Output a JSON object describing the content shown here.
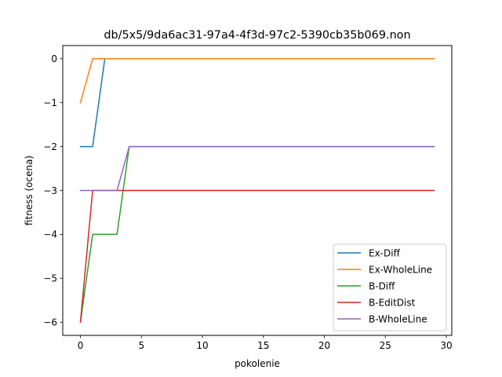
{
  "chart_data": {
    "type": "line",
    "title": "db/5x5/9da6ac31-97a4-4f3d-97c2-5390cb35b069.non",
    "xlabel": "pokolenie",
    "ylabel": "fitness (ocena)",
    "xlim": [
      -1.45,
      30.45
    ],
    "ylim": [
      -6.3,
      0.3
    ],
    "xticks": [
      0,
      5,
      10,
      15,
      20,
      25,
      30
    ],
    "yticks": [
      0,
      -1,
      -2,
      -3,
      -4,
      -5,
      -6
    ],
    "xtick_labels": [
      "0",
      "5",
      "10",
      "15",
      "20",
      "25",
      "30"
    ],
    "ytick_labels": [
      "0",
      "−1",
      "−2",
      "−3",
      "−4",
      "−5",
      "−6"
    ],
    "grid": false,
    "legend_position": "lower-right",
    "series": [
      {
        "name": "Ex-Diff",
        "color": "#1f77b4",
        "points": [
          [
            0,
            -2
          ],
          [
            1,
            -2
          ],
          [
            2,
            0
          ],
          [
            29,
            0
          ]
        ]
      },
      {
        "name": "Ex-WholeLine",
        "color": "#ff7f0e",
        "points": [
          [
            0,
            -1
          ],
          [
            1,
            0
          ],
          [
            29,
            0
          ]
        ]
      },
      {
        "name": "B-Diff",
        "color": "#2ca02c",
        "points": [
          [
            0,
            -6
          ],
          [
            1,
            -4
          ],
          [
            3,
            -4
          ],
          [
            4,
            -2
          ],
          [
            29,
            -2
          ]
        ]
      },
      {
        "name": "B-EditDist",
        "color": "#d62728",
        "points": [
          [
            0,
            -6
          ],
          [
            1,
            -3
          ],
          [
            29,
            -3
          ]
        ]
      },
      {
        "name": "B-WholeLine",
        "color": "#9467bd",
        "points": [
          [
            0,
            -3
          ],
          [
            3,
            -3
          ],
          [
            4,
            -2
          ],
          [
            29,
            -2
          ]
        ]
      }
    ]
  }
}
